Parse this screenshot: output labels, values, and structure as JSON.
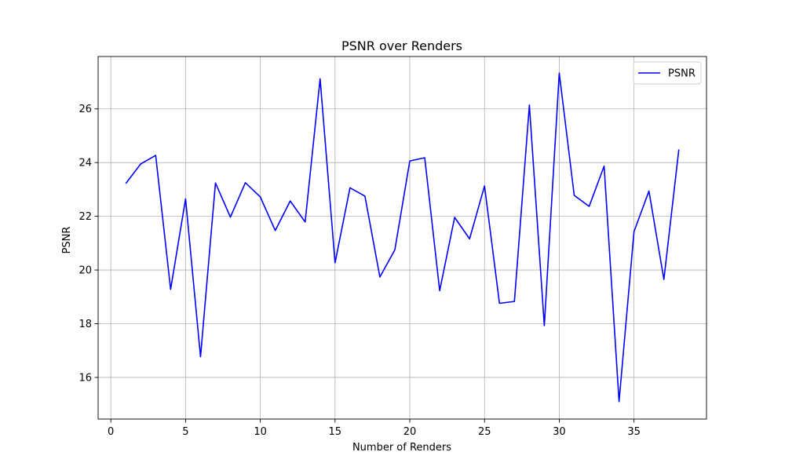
{
  "chart_data": {
    "type": "line",
    "title": "PSNR over Renders",
    "xlabel": "Number of Renders",
    "ylabel": "PSNR",
    "xlim": [
      -0.85,
      39.85
    ],
    "ylim": [
      14.45,
      27.95
    ],
    "xticks": [
      0,
      5,
      10,
      15,
      20,
      25,
      30,
      35
    ],
    "yticks": [
      16,
      18,
      20,
      22,
      24,
      26
    ],
    "grid": true,
    "legend_position": "top-right",
    "x": [
      1,
      2,
      3,
      4,
      5,
      6,
      7,
      8,
      9,
      10,
      11,
      12,
      13,
      14,
      15,
      16,
      17,
      18,
      19,
      20,
      21,
      22,
      23,
      24,
      25,
      26,
      27,
      28,
      29,
      30,
      31,
      32,
      33,
      34,
      35,
      36,
      37,
      38
    ],
    "series": [
      {
        "name": "PSNR",
        "color": "#0000ff",
        "values": [
          23.22,
          23.95,
          24.27,
          19.28,
          22.65,
          16.77,
          23.24,
          21.97,
          23.25,
          22.72,
          21.47,
          22.57,
          21.79,
          27.12,
          20.27,
          23.06,
          22.75,
          19.74,
          20.75,
          24.06,
          24.18,
          19.23,
          21.96,
          21.16,
          23.13,
          18.76,
          18.83,
          26.14,
          17.93,
          27.33,
          22.78,
          22.37,
          23.87,
          15.1,
          21.43,
          22.94,
          19.65,
          24.49
        ]
      }
    ]
  }
}
